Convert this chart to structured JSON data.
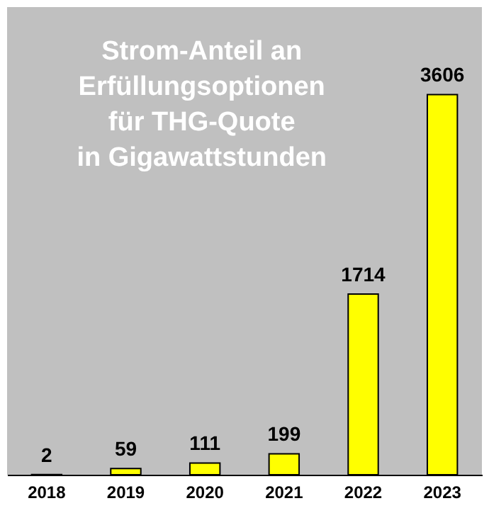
{
  "chart_data": {
    "type": "bar",
    "title": "Strom-Anteil an\nErfüllungsoptionen\nfür THG-Quote\nin Gigawattstunden",
    "categories": [
      "2018",
      "2019",
      "2020",
      "2021",
      "2022",
      "2023"
    ],
    "values": [
      2,
      59,
      111,
      199,
      1714,
      3606
    ],
    "color": "#ffff00",
    "data_labels": true
  }
}
